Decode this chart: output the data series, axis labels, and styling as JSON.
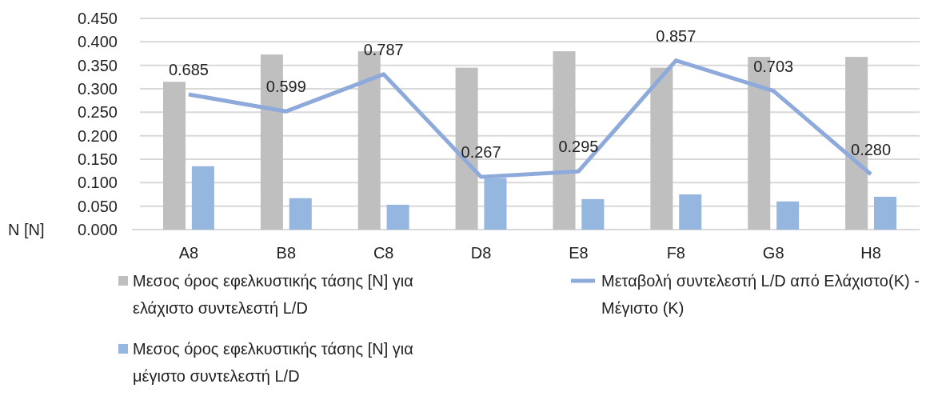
{
  "chart_data": {
    "type": "bar",
    "ylabel": "N [N]",
    "categories": [
      "A8",
      "B8",
      "C8",
      "D8",
      "E8",
      "F8",
      "G8",
      "H8"
    ],
    "series": [
      {
        "name": "Μεσος όρος εφελκυστικής τάσης [N] για ελάχιστο συντελεστή L/D",
        "color": "#bfbfbf",
        "values": [
          0.315,
          0.373,
          0.38,
          0.345,
          0.38,
          0.345,
          0.368,
          0.368
        ]
      },
      {
        "name": "Μεσος όρος εφελκυστικής τάσης [N] για μέγιστο συντελεστή L/D",
        "color": "#95b6df",
        "values": [
          0.135,
          0.067,
          0.053,
          0.11,
          0.065,
          0.075,
          0.06,
          0.07
        ]
      },
      {
        "name": "Μεταβολή συντελεστή L/D από Ελάχιστο(Κ) - Μέγιστο (Κ)",
        "type": "line",
        "axis": "y2",
        "color": "#8eaadb",
        "values": [
          0.685,
          0.599,
          0.787,
          0.267,
          0.295,
          0.857,
          0.703,
          0.28
        ],
        "value_labels": [
          "0.685",
          "0.599",
          "0.787",
          "0.267",
          "0.295",
          "0.857",
          "0.703",
          "0.280"
        ]
      }
    ],
    "ylim": [
      0,
      0.45
    ],
    "yticks": [
      {
        "value": 0,
        "label": "0.000"
      },
      {
        "value": 0.05,
        "label": "0.050"
      },
      {
        "value": 0.1,
        "label": "0.100"
      },
      {
        "value": 0.15,
        "label": "0.150"
      },
      {
        "value": 0.2,
        "label": "0.200"
      },
      {
        "value": 0.25,
        "label": "0.250"
      },
      {
        "value": 0.3,
        "label": "0.300"
      },
      {
        "value": 0.35,
        "label": "0.350"
      },
      {
        "value": 0.4,
        "label": "0.400"
      },
      {
        "value": 0.45,
        "label": "0.450"
      }
    ],
    "y2lim": [
      0,
      1.07
    ],
    "grid": "y",
    "legend": "bottom"
  }
}
